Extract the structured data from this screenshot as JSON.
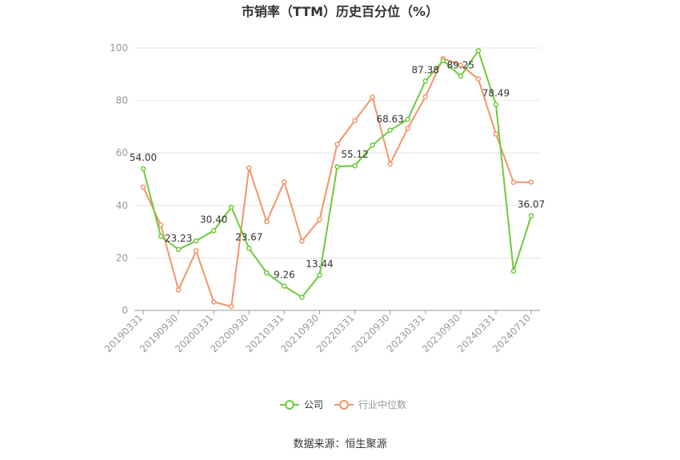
{
  "chart_data": {
    "type": "line",
    "title": "市销率（TTM）历史百分位（%）",
    "ylim": [
      0,
      100
    ],
    "yticks": [
      0,
      20,
      40,
      60,
      80,
      100
    ],
    "grid": true,
    "legend_position": "bottom-center",
    "x_tick_labels": [
      "20190331",
      "20190930",
      "20200331",
      "20200930",
      "20210331",
      "20210930",
      "20220331",
      "20220930",
      "20230331",
      "20230930",
      "20240331",
      "20240710"
    ],
    "x": [
      "20190331",
      "20190630",
      "20190930",
      "20191231",
      "20200331",
      "20200630",
      "20200930",
      "20201231",
      "20210331",
      "20210630",
      "20210930",
      "20211231",
      "20220331",
      "20220630",
      "20220930",
      "20221231",
      "20230331",
      "20230630",
      "20230930",
      "20231231",
      "20240331",
      "20240630",
      "20240710"
    ],
    "series": [
      {
        "name": "公司",
        "color": "#6bcb3c",
        "values": [
          54.0,
          28.2,
          23.23,
          26.5,
          30.4,
          39.3,
          23.67,
          14.3,
          9.26,
          5.0,
          13.44,
          54.8,
          55.12,
          63.0,
          68.63,
          72.8,
          87.38,
          95.2,
          89.25,
          99.0,
          78.49,
          15.0,
          36.07
        ],
        "labels": [
          "54.00",
          "",
          "23.23",
          "",
          "30.40",
          "",
          "23.67",
          "",
          "9.26",
          "",
          "13.44",
          "",
          "55.12",
          "",
          "68.63",
          "",
          "87.38",
          "",
          "89.25",
          "",
          "78.49",
          "",
          "36.07"
        ]
      },
      {
        "name": "行业中位数",
        "color": "#f4946a",
        "values": [
          47.0,
          32.5,
          7.8,
          22.7,
          3.2,
          1.5,
          54.3,
          33.8,
          49.0,
          26.4,
          34.6,
          63.3,
          72.3,
          81.3,
          55.8,
          69.4,
          81.4,
          96.0,
          93.5,
          88.2,
          67.2,
          48.8,
          48.9
        ]
      }
    ]
  },
  "source": "数据来源：恒生聚源"
}
